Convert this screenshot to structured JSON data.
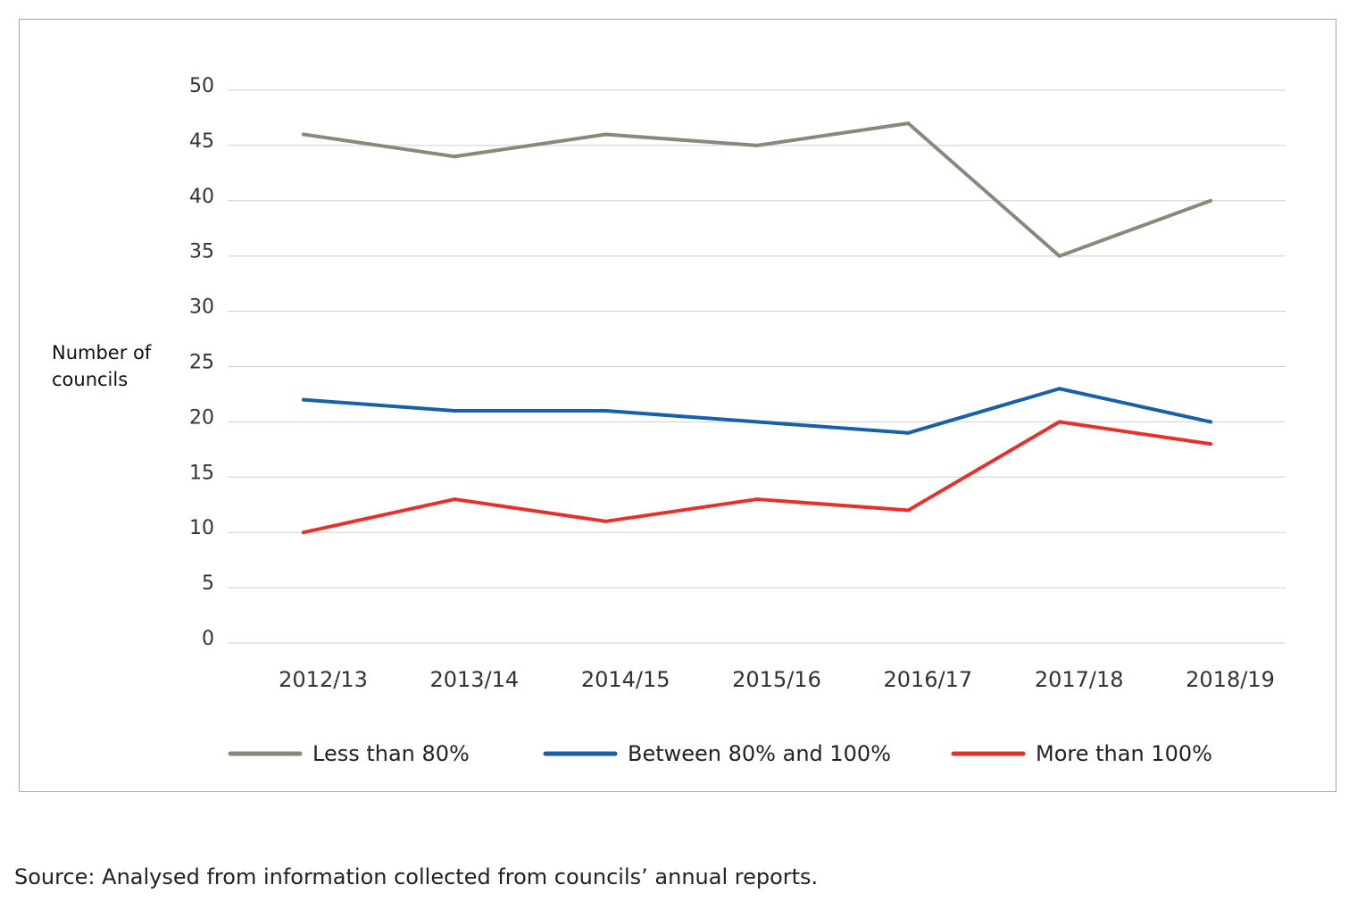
{
  "chart_data": {
    "type": "line",
    "categories": [
      "2012/13",
      "2013/14",
      "2014/15",
      "2015/16",
      "2016/17",
      "2017/18",
      "2018/19"
    ],
    "series": [
      {
        "name": "Less than 80%",
        "color": "#8c877a",
        "values": [
          46,
          44,
          46,
          45,
          47,
          35,
          40
        ]
      },
      {
        "name": "Between 80% and 100%",
        "color": "#1761a8",
        "values": [
          22,
          21,
          21,
          20,
          19,
          23,
          20
        ]
      },
      {
        "name": "More than 100%",
        "color": "#e4322b",
        "values": [
          10,
          13,
          11,
          13,
          12,
          20,
          18
        ]
      }
    ],
    "ylabel_lines": [
      "Number of",
      "councils"
    ],
    "xlabel": "",
    "ylim": [
      0,
      50
    ],
    "yticks": [
      0,
      5,
      10,
      15,
      20,
      25,
      30,
      35,
      40,
      45,
      50
    ],
    "grid": true,
    "legend_position": "bottom"
  },
  "source_note": "Source: Analysed from information collected from councils’ annual reports."
}
